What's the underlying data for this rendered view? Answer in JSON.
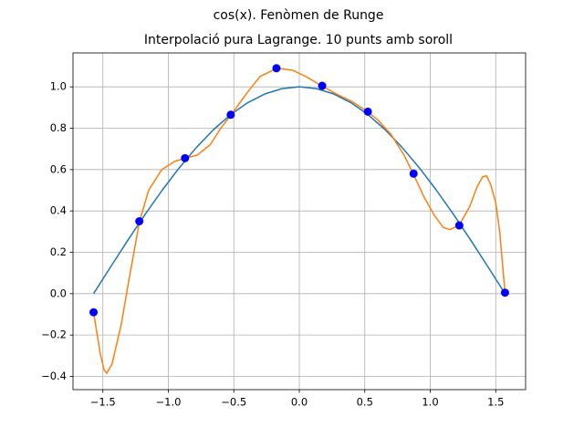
{
  "chart_data": {
    "type": "line",
    "suptitle": "cos(x). Fenòmen de Runge",
    "title": "Interpolació pura Lagrange. 10 punts amb soroll",
    "xlim": [
      -1.728,
      1.728
    ],
    "ylim": [
      -0.464,
      1.164
    ],
    "xticks": [
      {
        "value": -1.5,
        "label": "−1.5"
      },
      {
        "value": -1.0,
        "label": "−1.0"
      },
      {
        "value": -0.5,
        "label": "−0.5"
      },
      {
        "value": 0,
        "label": "0.0"
      },
      {
        "value": 0.5,
        "label": "0.5"
      },
      {
        "value": 1.0,
        "label": "1.0"
      },
      {
        "value": 1.5,
        "label": "1.5"
      }
    ],
    "yticks": [
      {
        "value": -0.4,
        "label": "−0.4"
      },
      {
        "value": -0.2,
        "label": "−0.2"
      },
      {
        "value": 0,
        "label": "0.0"
      },
      {
        "value": 0.2,
        "label": "0.2"
      },
      {
        "value": 0.4,
        "label": "0.4"
      },
      {
        "value": 0.6,
        "label": "0.6"
      },
      {
        "value": 0.8,
        "label": "0.8"
      },
      {
        "value": 1.0,
        "label": "1.0"
      }
    ],
    "grid": true,
    "series": [
      {
        "type": "line",
        "color": "#1f77b4",
        "x": [
          -1.5708,
          -1.4399,
          -1.309,
          -1.1781,
          -1.0472,
          -0.9163,
          -0.7854,
          -0.6545,
          -0.5236,
          -0.3927,
          -0.2618,
          -0.1309,
          0,
          0.1309,
          0.2618,
          0.3927,
          0.5236,
          0.6545,
          0.7854,
          0.9163,
          1.0472,
          1.1781,
          1.309,
          1.4399,
          1.5708
        ],
        "values": [
          0,
          0.1305,
          0.2588,
          0.3827,
          0.5,
          0.6088,
          0.7071,
          0.7934,
          0.866,
          0.9239,
          0.9659,
          0.9914,
          1,
          0.9914,
          0.9659,
          0.9239,
          0.866,
          0.7934,
          0.7071,
          0.6088,
          0.5,
          0.3827,
          0.2588,
          0.1305,
          0
        ]
      },
      {
        "type": "line",
        "color": "#ff7f0e",
        "x": [
          -1.5708,
          -1.52,
          -1.49,
          -1.47,
          -1.43,
          -1.36,
          -1.3,
          -1.22,
          -1.15,
          -1.05,
          -0.95,
          -0.87,
          -0.78,
          -0.68,
          -0.6,
          -0.52,
          -0.4,
          -0.3,
          -0.17,
          -0.05,
          0.05,
          0.17,
          0.3,
          0.4,
          0.52,
          0.6,
          0.7,
          0.8,
          0.87,
          0.95,
          1.03,
          1.1,
          1.15,
          1.22,
          1.3,
          1.36,
          1.4,
          1.43,
          1.46,
          1.5,
          1.53,
          1.5708
        ],
        "values": [
          -0.09,
          -0.29,
          -0.37,
          -0.385,
          -0.34,
          -0.15,
          0.07,
          0.35,
          0.5,
          0.6,
          0.64,
          0.655,
          0.67,
          0.72,
          0.8,
          0.865,
          0.97,
          1.05,
          1.09,
          1.08,
          1.05,
          1.005,
          0.96,
          0.93,
          0.88,
          0.84,
          0.77,
          0.67,
          0.58,
          0.47,
          0.38,
          0.32,
          0.31,
          0.33,
          0.42,
          0.52,
          0.565,
          0.57,
          0.53,
          0.44,
          0.3,
          0.005
        ]
      },
      {
        "type": "scatter",
        "color": "#0000ff",
        "x": [
          -1.5708,
          -1.2217,
          -0.8727,
          -0.5236,
          -0.1745,
          0.1745,
          0.5236,
          0.8727,
          1.2217,
          1.5708
        ],
        "values": [
          -0.09,
          0.35,
          0.655,
          0.865,
          1.09,
          1.005,
          0.88,
          0.58,
          0.33,
          0.005
        ]
      }
    ]
  }
}
